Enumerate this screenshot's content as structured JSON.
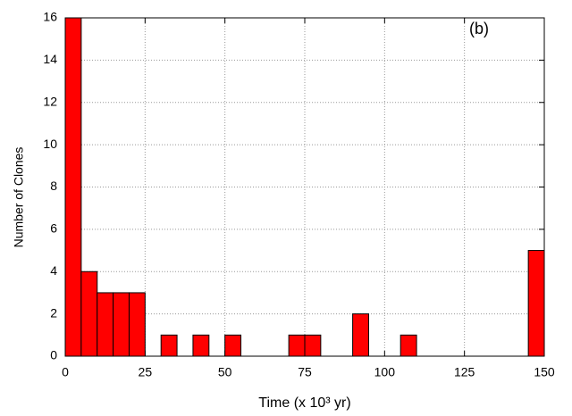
{
  "chart_data": {
    "type": "histogram",
    "annotation": "(b)",
    "xlabel": "Time (x 10³ yr)",
    "ylabel": "Number of Clones",
    "bins": [
      0,
      5,
      10,
      15,
      20,
      25,
      30,
      35,
      40,
      45,
      50,
      55,
      60,
      65,
      70,
      75,
      80,
      85,
      90,
      95,
      100,
      105,
      110,
      115,
      120,
      125,
      130,
      135,
      140,
      145,
      150
    ],
    "values": [
      16,
      4,
      3,
      3,
      3,
      0,
      1,
      0,
      1,
      0,
      1,
      0,
      0,
      0,
      1,
      1,
      0,
      0,
      2,
      0,
      0,
      1,
      0,
      0,
      0,
      0,
      0,
      0,
      0,
      5
    ],
    "color": "#ff0000",
    "xlim": [
      0,
      150
    ],
    "xticks": [
      0,
      25,
      50,
      75,
      100,
      125,
      150
    ],
    "ylim": [
      0,
      16
    ],
    "yticks": [
      0,
      2,
      4,
      6,
      8,
      10,
      12,
      14,
      16
    ],
    "grid": true
  }
}
